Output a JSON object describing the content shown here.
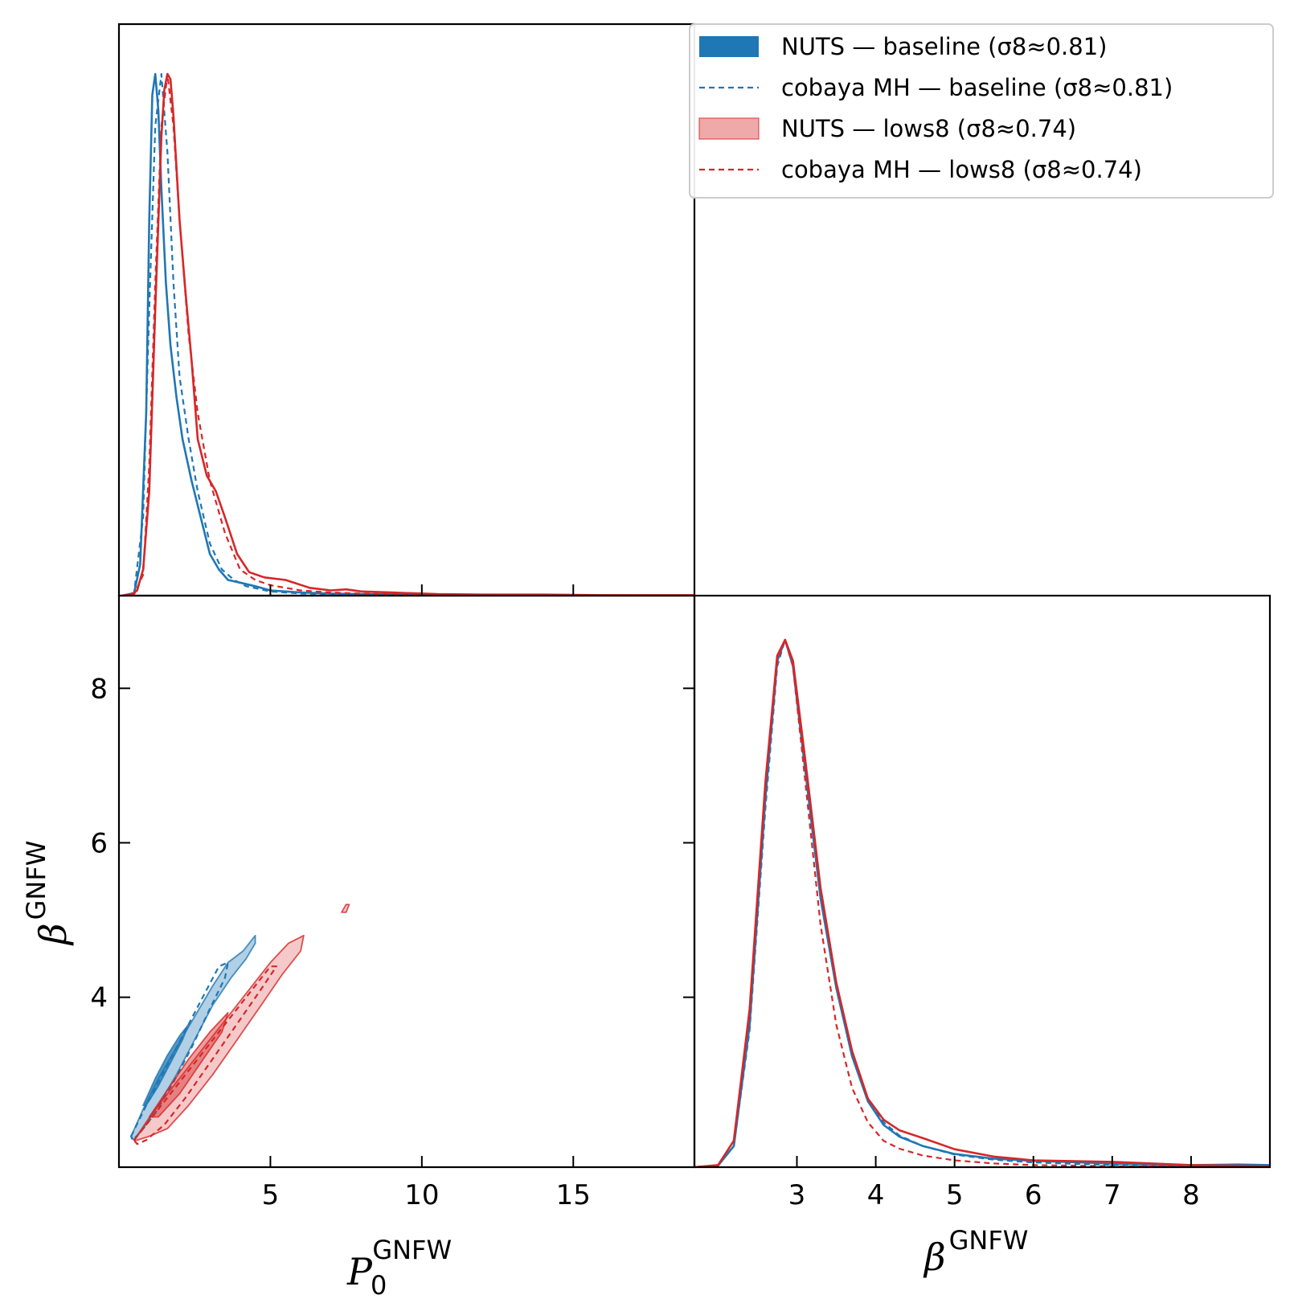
{
  "colors": {
    "baseline": "#1f77b4",
    "lows8": "#d62728",
    "lows8_fill": "#f0a9a9"
  },
  "legend": {
    "placement": "top-right",
    "items": [
      {
        "label": "NUTS — baseline (σ8≈0.81)",
        "style": "filled-patch",
        "color": "#1f77b4"
      },
      {
        "label": "cobaya MH — baseline (σ8≈0.81)",
        "style": "dashed-line",
        "color": "#1f77b4"
      },
      {
        "label": "NUTS — lows8 (σ8≈0.74)",
        "style": "filled-patch",
        "color": "#f0a9a9"
      },
      {
        "label": "cobaya MH — lows8 (σ8≈0.74)",
        "style": "dashed-line",
        "color": "#d62728"
      }
    ]
  },
  "axes": {
    "p0": {
      "label": "P",
      "sub": "0",
      "sup": "GNFW",
      "range": [
        0.0,
        19.0
      ],
      "ticks": [
        5,
        10,
        15
      ]
    },
    "beta": {
      "label": "β",
      "sup": "GNFW",
      "range_bottom": [
        1.7,
        9.0
      ],
      "range_left": [
        1.8,
        9.2
      ],
      "ticks_bottom": [
        3,
        4,
        5,
        6,
        7,
        8
      ],
      "ticks_left": [
        4,
        6,
        8
      ]
    }
  },
  "chart_data": [
    {
      "type": "line",
      "panel": "top-left: marginal of P0 GNFW",
      "xlabel": "",
      "ylabel": "",
      "xlim": [
        0.0,
        19.0
      ],
      "series": [
        {
          "name": "NUTS — baseline (σ8≈0.81)",
          "style": "solid",
          "color": "#1f77b4",
          "x": [
            0.1,
            0.5,
            0.7,
            0.9,
            1.0,
            1.1,
            1.2,
            1.3,
            1.4,
            1.55,
            1.7,
            1.9,
            2.1,
            2.4,
            2.7,
            3.0,
            3.3,
            3.6,
            4.0,
            4.5,
            5.0,
            5.5,
            6.0,
            7.0,
            8.0,
            10.0,
            13.0,
            16.0,
            19.0
          ],
          "y": [
            0.0,
            0.005,
            0.06,
            0.35,
            0.72,
            0.96,
            1.0,
            0.93,
            0.78,
            0.6,
            0.48,
            0.38,
            0.3,
            0.22,
            0.15,
            0.08,
            0.05,
            0.03,
            0.025,
            0.018,
            0.01,
            0.008,
            0.006,
            0.004,
            0.003,
            0.002,
            0.001,
            0.0005,
            0.0
          ]
        },
        {
          "name": "cobaya MH — baseline (σ8≈0.81)",
          "style": "dashed",
          "color": "#1f77b4",
          "x": [
            0.1,
            0.5,
            0.8,
            1.0,
            1.2,
            1.4,
            1.6,
            1.8,
            2.0,
            2.3,
            2.6,
            3.0,
            3.4,
            3.8,
            4.2,
            5.0,
            6.0,
            8.0,
            12.0,
            19.0
          ],
          "y": [
            0.0,
            0.005,
            0.15,
            0.55,
            0.9,
            1.0,
            0.85,
            0.6,
            0.42,
            0.3,
            0.2,
            0.1,
            0.05,
            0.03,
            0.018,
            0.008,
            0.004,
            0.002,
            0.001,
            0.0
          ]
        },
        {
          "name": "NUTS — lows8 (σ8≈0.74)",
          "style": "solid",
          "color": "#d62728",
          "x": [
            0.1,
            0.4,
            0.6,
            0.8,
            1.0,
            1.2,
            1.4,
            1.5,
            1.6,
            1.7,
            1.8,
            1.9,
            2.0,
            2.2,
            2.4,
            2.6,
            2.9,
            3.2,
            3.5,
            3.9,
            4.3,
            4.8,
            5.5,
            6.3,
            7.0,
            7.5,
            8.0,
            9.0,
            10.5,
            12.0,
            14.0,
            16.0,
            19.0
          ],
          "y": [
            0.0,
            0.002,
            0.01,
            0.05,
            0.2,
            0.55,
            0.88,
            0.97,
            1.0,
            0.99,
            0.92,
            0.82,
            0.72,
            0.58,
            0.45,
            0.3,
            0.23,
            0.2,
            0.15,
            0.08,
            0.045,
            0.035,
            0.03,
            0.015,
            0.01,
            0.012,
            0.008,
            0.006,
            0.003,
            0.002,
            0.002,
            0.001,
            0.001
          ]
        },
        {
          "name": "cobaya MH — lows8 (σ8≈0.74)",
          "style": "dashed",
          "color": "#d62728",
          "x": [
            0.1,
            0.5,
            0.8,
            1.0,
            1.2,
            1.4,
            1.6,
            1.8,
            2.0,
            2.3,
            2.6,
            3.0,
            3.5,
            4.0,
            4.5,
            5.0,
            6.0,
            7.0,
            8.0,
            10.0,
            14.0,
            19.0
          ],
          "y": [
            0.0,
            0.002,
            0.04,
            0.25,
            0.6,
            0.9,
            1.0,
            0.9,
            0.72,
            0.5,
            0.35,
            0.22,
            0.12,
            0.05,
            0.03,
            0.02,
            0.01,
            0.006,
            0.004,
            0.002,
            0.001,
            0.0
          ]
        }
      ]
    },
    {
      "type": "line",
      "panel": "bottom-right: marginal of beta GNFW",
      "xlabel": "β GNFW",
      "ylabel": "",
      "xlim": [
        1.7,
        9.0
      ],
      "series": [
        {
          "name": "NUTS — baseline (σ8≈0.81)",
          "style": "solid",
          "color": "#1f77b4",
          "x": [
            1.7,
            2.0,
            2.2,
            2.4,
            2.6,
            2.75,
            2.85,
            2.95,
            3.1,
            3.3,
            3.5,
            3.7,
            3.9,
            4.1,
            4.3,
            4.6,
            5.0,
            5.5,
            6.0,
            7.0,
            8.0,
            8.6,
            9.0
          ],
          "y": [
            0.0,
            0.003,
            0.04,
            0.27,
            0.7,
            0.96,
            1.0,
            0.95,
            0.76,
            0.51,
            0.34,
            0.21,
            0.125,
            0.08,
            0.058,
            0.04,
            0.025,
            0.016,
            0.012,
            0.007,
            0.004,
            0.005,
            0.004
          ]
        },
        {
          "name": "cobaya MH — baseline (σ8≈0.81)",
          "style": "dashed",
          "color": "#1f77b4",
          "x": [
            1.7,
            2.0,
            2.2,
            2.4,
            2.6,
            2.75,
            2.85,
            2.95,
            3.1,
            3.3,
            3.5,
            3.7,
            3.9,
            4.1,
            4.3,
            4.6,
            5.0,
            5.5,
            6.0,
            7.0,
            8.0,
            9.0
          ],
          "y": [
            0.0,
            0.003,
            0.04,
            0.26,
            0.68,
            0.95,
            1.0,
            0.96,
            0.77,
            0.52,
            0.34,
            0.21,
            0.13,
            0.085,
            0.06,
            0.04,
            0.024,
            0.014,
            0.009,
            0.004,
            0.002,
            0.0
          ]
        },
        {
          "name": "NUTS — lows8 (σ8≈0.74)",
          "style": "solid",
          "color": "#d62728",
          "x": [
            1.7,
            2.0,
            2.2,
            2.4,
            2.6,
            2.75,
            2.85,
            2.95,
            3.1,
            3.3,
            3.5,
            3.7,
            3.9,
            4.1,
            4.3,
            4.6,
            5.0,
            5.5,
            6.0,
            7.0,
            8.0,
            9.0
          ],
          "y": [
            0.0,
            0.004,
            0.05,
            0.3,
            0.73,
            0.97,
            1.0,
            0.96,
            0.78,
            0.53,
            0.35,
            0.22,
            0.13,
            0.09,
            0.07,
            0.055,
            0.034,
            0.02,
            0.013,
            0.01,
            0.004,
            0.002
          ]
        },
        {
          "name": "cobaya MH — lows8 (σ8≈0.74)",
          "style": "dashed",
          "color": "#d62728",
          "x": [
            1.7,
            2.0,
            2.2,
            2.4,
            2.6,
            2.75,
            2.85,
            2.95,
            3.1,
            3.3,
            3.5,
            3.7,
            3.9,
            4.1,
            4.3,
            4.6,
            5.0,
            5.5,
            6.0,
            7.0,
            8.0,
            9.0
          ],
          "y": [
            0.0,
            0.004,
            0.05,
            0.29,
            0.72,
            0.96,
            1.0,
            0.95,
            0.74,
            0.46,
            0.27,
            0.15,
            0.085,
            0.05,
            0.035,
            0.022,
            0.013,
            0.007,
            0.004,
            0.002,
            0.001,
            0.0
          ]
        }
      ]
    },
    {
      "type": "scatter",
      "panel": "bottom-left: joint P0 GNFW vs beta GNFW contours",
      "xlabel": "P0 GNFW",
      "ylabel": "β GNFW",
      "xlim": [
        0.0,
        19.0
      ],
      "ylim": [
        1.8,
        9.2
      ],
      "series": [
        {
          "name": "NUTS — baseline (σ8≈0.81)",
          "level": "95%",
          "style": "filled",
          "color": "#1f77b4",
          "x": [
            0.4,
            0.8,
            1.3,
            1.9,
            2.5,
            3.1,
            3.6,
            4.1,
            4.5,
            4.5,
            4.2,
            3.7,
            3.1,
            2.5,
            1.9,
            1.3,
            0.8,
            0.5
          ],
          "y": [
            2.2,
            2.55,
            2.95,
            3.35,
            3.75,
            4.15,
            4.45,
            4.6,
            4.8,
            4.7,
            4.5,
            4.25,
            3.9,
            3.45,
            3.0,
            2.6,
            2.3,
            2.15
          ]
        },
        {
          "name": "NUTS — baseline (σ8≈0.81)",
          "level": "68%",
          "style": "filled",
          "color": "#1f77b4",
          "x": [
            0.8,
            1.2,
            1.6,
            2.0,
            2.3,
            2.1,
            1.7,
            1.3,
            0.9
          ],
          "y": [
            2.6,
            2.95,
            3.25,
            3.5,
            3.65,
            3.45,
            3.15,
            2.85,
            2.6
          ]
        },
        {
          "name": "cobaya MH — baseline (σ8≈0.81)",
          "level": "95%",
          "style": "dashed",
          "color": "#1f77b4",
          "x": [
            0.4,
            0.9,
            1.5,
            2.1,
            2.7,
            3.3,
            3.6,
            3.5,
            3.0,
            2.4,
            1.8,
            1.2,
            0.7,
            0.45
          ],
          "y": [
            2.2,
            2.6,
            3.05,
            3.5,
            3.95,
            4.4,
            4.45,
            4.25,
            3.85,
            3.35,
            2.9,
            2.5,
            2.25,
            2.15
          ]
        },
        {
          "name": "NUTS — lows8 (σ8≈0.74)",
          "level": "95%",
          "style": "filled",
          "color": "#d62728",
          "x": [
            0.5,
            1.1,
            1.8,
            2.6,
            3.4,
            4.2,
            5.0,
            5.6,
            6.1,
            6.0,
            5.4,
            4.7,
            3.9,
            3.1,
            2.3,
            1.6,
            1.0,
            0.6
          ],
          "y": [
            2.15,
            2.5,
            2.85,
            3.25,
            3.65,
            4.05,
            4.45,
            4.7,
            4.8,
            4.6,
            4.3,
            3.9,
            3.45,
            3.0,
            2.6,
            2.3,
            2.2,
            2.15
          ]
        },
        {
          "name": "NUTS — lows8 (σ8≈0.74)",
          "level": "island",
          "style": "filled",
          "color": "#d62728",
          "x": [
            7.35,
            7.5,
            7.6,
            7.5
          ],
          "y": [
            5.1,
            5.2,
            5.2,
            5.1
          ]
        },
        {
          "name": "NUTS — lows8 (σ8≈0.74)",
          "level": "68%",
          "style": "filled",
          "color": "#d62728",
          "x": [
            1.0,
            1.6,
            2.3,
            3.0,
            3.6,
            3.4,
            2.7,
            2.0,
            1.3
          ],
          "y": [
            2.45,
            2.8,
            3.2,
            3.55,
            3.8,
            3.55,
            3.15,
            2.75,
            2.45
          ]
        },
        {
          "name": "cobaya MH — lows8 (σ8≈0.74)",
          "level": "95%",
          "style": "dashed",
          "color": "#d62728",
          "x": [
            0.5,
            1.1,
            1.8,
            2.6,
            3.4,
            4.2,
            5.0,
            5.2,
            4.6,
            3.8,
            3.0,
            2.2,
            1.5,
            0.9,
            0.6
          ],
          "y": [
            2.15,
            2.45,
            2.8,
            3.2,
            3.6,
            4.0,
            4.4,
            4.4,
            4.05,
            3.6,
            3.15,
            2.7,
            2.35,
            2.15,
            2.1
          ]
        }
      ]
    }
  ]
}
